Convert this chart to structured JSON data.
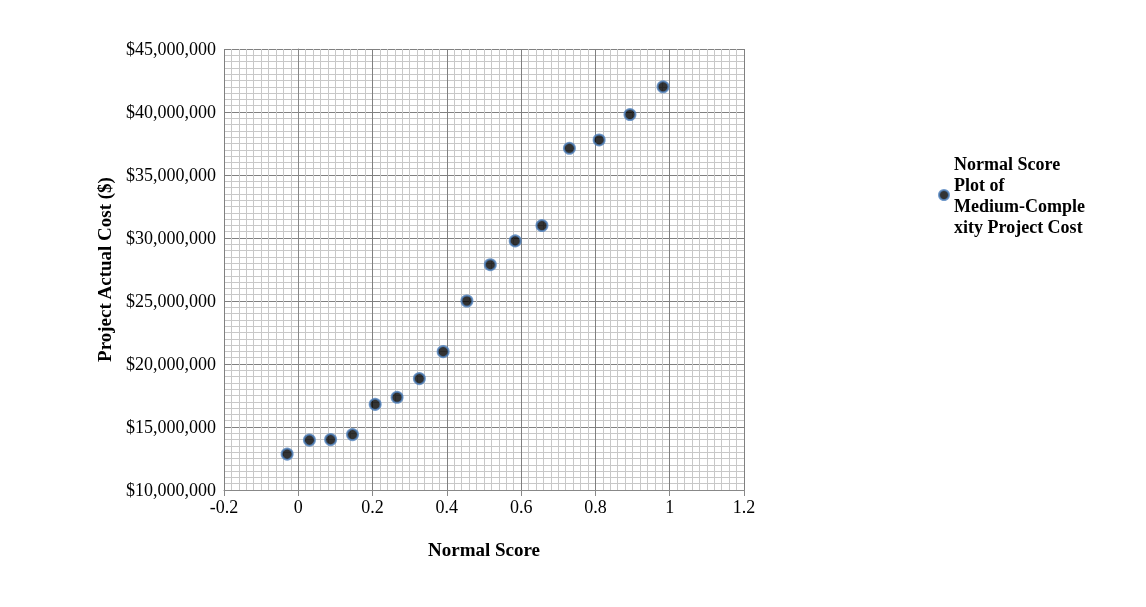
{
  "chart_data": {
    "type": "scatter",
    "xlabel": "Normal Score",
    "ylabel": "Project Actual Cost ($)",
    "xlim": [
      -0.2,
      1.2
    ],
    "xticks": [
      -0.2,
      0,
      0.2,
      0.4,
      0.6,
      0.8,
      1,
      1.2
    ],
    "ylim": [
      10000000,
      45000000
    ],
    "yticks": [
      {
        "value": 10000000,
        "label": "$10,000,000"
      },
      {
        "value": 15000000,
        "label": "$15,000,000"
      },
      {
        "value": 20000000,
        "label": "$20,000,000"
      },
      {
        "value": 25000000,
        "label": "$25,000,000"
      },
      {
        "value": 30000000,
        "label": "$30,000,000"
      },
      {
        "value": 35000000,
        "label": "$35,000,000"
      },
      {
        "value": 40000000,
        "label": "$40,000,000"
      },
      {
        "value": 45000000,
        "label": "$45,000,000"
      }
    ],
    "grid": true,
    "legend": "right",
    "marker": "circle",
    "series": [
      {
        "name": "Normal Score Plot of Medium-Complexity Project Cost",
        "color": "#000000",
        "x": [
          -0.03,
          0.03,
          0.087,
          0.146,
          0.207,
          0.266,
          0.326,
          0.39,
          0.454,
          0.517,
          0.584,
          0.656,
          0.73,
          0.81,
          0.893,
          0.982
        ],
        "values": [
          12850000,
          13960000,
          14000000,
          14400000,
          16800000,
          17360000,
          18840000,
          20980000,
          25000000,
          27880000,
          29770000,
          30990000,
          37120000,
          37780000,
          39800000,
          42000000
        ]
      }
    ]
  }
}
